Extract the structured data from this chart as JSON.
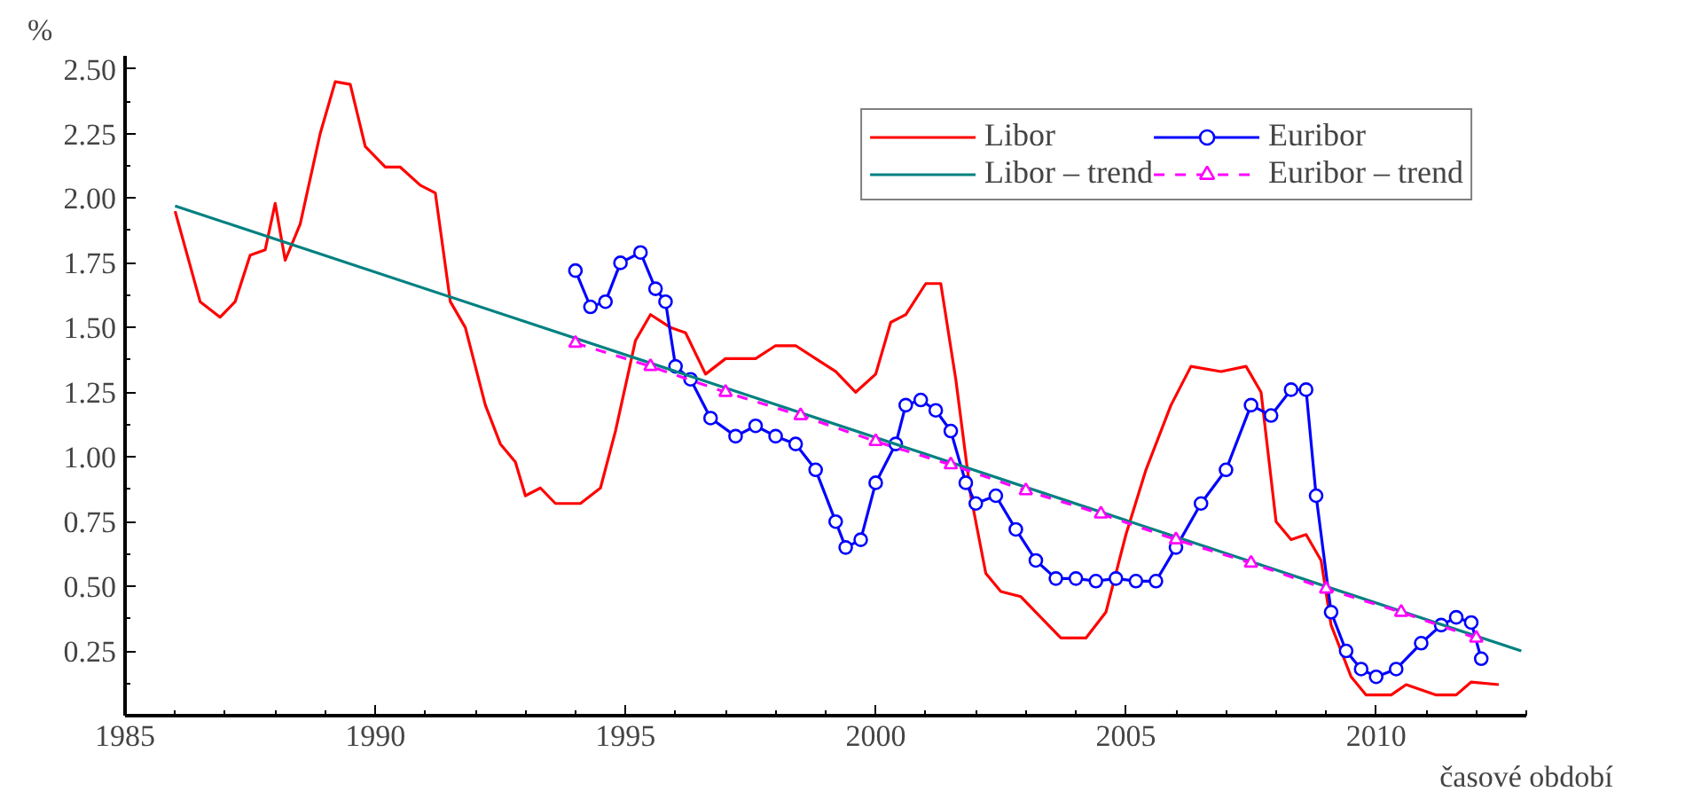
{
  "chart_data": {
    "type": "line",
    "ylabel": "%",
    "xlabel": "časové období",
    "xlim": [
      1985,
      2013
    ],
    "xticks": [
      1985,
      1990,
      1995,
      2000,
      2005,
      2010
    ],
    "ylim": [
      0,
      2.55
    ],
    "yticks": [
      {
        "value": 0.25,
        "label": "0.25"
      },
      {
        "value": 0.5,
        "label": "0.50"
      },
      {
        "value": 0.75,
        "label": "0.75"
      },
      {
        "value": 1.0,
        "label": "1.00"
      },
      {
        "value": 1.25,
        "label": "1.25"
      },
      {
        "value": 1.5,
        "label": "1.50"
      },
      {
        "value": 1.75,
        "label": "1.75"
      },
      {
        "value": 2.0,
        "label": "2.00"
      },
      {
        "value": 2.25,
        "label": "2.25"
      },
      {
        "value": 2.5,
        "label": "2.50"
      }
    ],
    "grid": false,
    "legend": "top right",
    "series": [
      {
        "name": "Libor",
        "color": "#ff0000",
        "marker": "none",
        "line_style": "solid",
        "x": [
          1986.0,
          1986.5,
          1986.9,
          1987.2,
          1987.5,
          1987.8,
          1988.0,
          1988.2,
          1988.5,
          1988.9,
          1989.2,
          1989.5,
          1989.8,
          1990.2,
          1990.5,
          1990.9,
          1991.2,
          1991.5,
          1991.8,
          1992.2,
          1992.5,
          1992.8,
          1993.0,
          1993.3,
          1993.6,
          1994.1,
          1994.5,
          1994.8,
          1995.2,
          1995.5,
          1995.9,
          1996.2,
          1996.6,
          1997.0,
          1997.6,
          1998.0,
          1998.4,
          1998.8,
          1999.2,
          1999.6,
          2000.0,
          2000.3,
          2000.6,
          2001.0,
          2001.3,
          2001.6,
          2001.9,
          2002.2,
          2002.5,
          2002.9,
          2003.2,
          2003.7,
          2004.2,
          2004.6,
          2005.0,
          2005.4,
          2005.9,
          2006.3,
          2006.9,
          2007.4,
          2007.7,
          2008.0,
          2008.3,
          2008.6,
          2008.9,
          2009.1,
          2009.5,
          2009.8,
          2010.3,
          2010.6,
          2011.2,
          2011.6,
          2011.9,
          2012.45
        ],
        "values": [
          1.95,
          1.6,
          1.54,
          1.6,
          1.78,
          1.8,
          1.98,
          1.76,
          1.9,
          2.25,
          2.45,
          2.44,
          2.2,
          2.12,
          2.12,
          2.05,
          2.02,
          1.6,
          1.5,
          1.2,
          1.05,
          0.98,
          0.85,
          0.88,
          0.82,
          0.82,
          0.88,
          1.1,
          1.45,
          1.55,
          1.5,
          1.48,
          1.32,
          1.38,
          1.38,
          1.43,
          1.43,
          1.38,
          1.33,
          1.25,
          1.32,
          1.52,
          1.55,
          1.67,
          1.67,
          1.3,
          0.85,
          0.55,
          0.48,
          0.46,
          0.4,
          0.3,
          0.3,
          0.4,
          0.7,
          0.95,
          1.2,
          1.35,
          1.33,
          1.35,
          1.25,
          0.75,
          0.68,
          0.7,
          0.6,
          0.35,
          0.15,
          0.08,
          0.08,
          0.12,
          0.08,
          0.08,
          0.13,
          0.12
        ]
      },
      {
        "name": "Euribor",
        "color": "#0000ff",
        "marker": "circle",
        "line_style": "solid",
        "x": [
          1994.0,
          1994.3,
          1994.6,
          1994.9,
          1995.3,
          1995.6,
          1995.8,
          1996.0,
          1996.3,
          1996.7,
          1997.2,
          1997.6,
          1998.0,
          1998.4,
          1998.8,
          1999.2,
          1999.4,
          1999.7,
          2000.0,
          2000.4,
          2000.6,
          2000.9,
          2001.2,
          2001.5,
          2001.8,
          2002.0,
          2002.4,
          2002.8,
          2003.2,
          2003.6,
          2004.0,
          2004.4,
          2004.8,
          2005.2,
          2005.6,
          2006.0,
          2006.5,
          2007.0,
          2007.5,
          2007.9,
          2008.3,
          2008.6,
          2008.8,
          2009.1,
          2009.4,
          2009.7,
          2010.0,
          2010.4,
          2010.9,
          2011.3,
          2011.6,
          2011.9,
          2012.1
        ],
        "values": [
          1.72,
          1.58,
          1.6,
          1.75,
          1.79,
          1.65,
          1.6,
          1.35,
          1.3,
          1.15,
          1.08,
          1.12,
          1.08,
          1.05,
          0.95,
          0.75,
          0.65,
          0.68,
          0.9,
          1.05,
          1.2,
          1.22,
          1.18,
          1.1,
          0.9,
          0.82,
          0.85,
          0.72,
          0.6,
          0.53,
          0.53,
          0.52,
          0.53,
          0.52,
          0.52,
          0.65,
          0.82,
          0.95,
          1.2,
          1.16,
          1.26,
          1.26,
          0.85,
          0.4,
          0.25,
          0.18,
          0.15,
          0.18,
          0.28,
          0.35,
          0.38,
          0.36,
          0.22
        ]
      },
      {
        "name": "Libor – trend",
        "color": "#008080",
        "marker": "none",
        "line_style": "solid",
        "x": [
          1986.0,
          2012.9
        ],
        "values": [
          1.97,
          0.25
        ]
      },
      {
        "name": "Euribor – trend",
        "color": "#ff00ff",
        "marker": "triangle",
        "line_style": "dashed",
        "x": [
          1994.0,
          1995.5,
          1997.0,
          1998.5,
          2000.0,
          2001.5,
          2003.0,
          2004.5,
          2006.0,
          2007.5,
          2009.0,
          2010.5,
          2012.0
        ],
        "values": [
          1.44,
          1.35,
          1.25,
          1.16,
          1.06,
          0.97,
          0.87,
          0.78,
          0.68,
          0.59,
          0.49,
          0.4,
          0.3
        ]
      }
    ]
  }
}
